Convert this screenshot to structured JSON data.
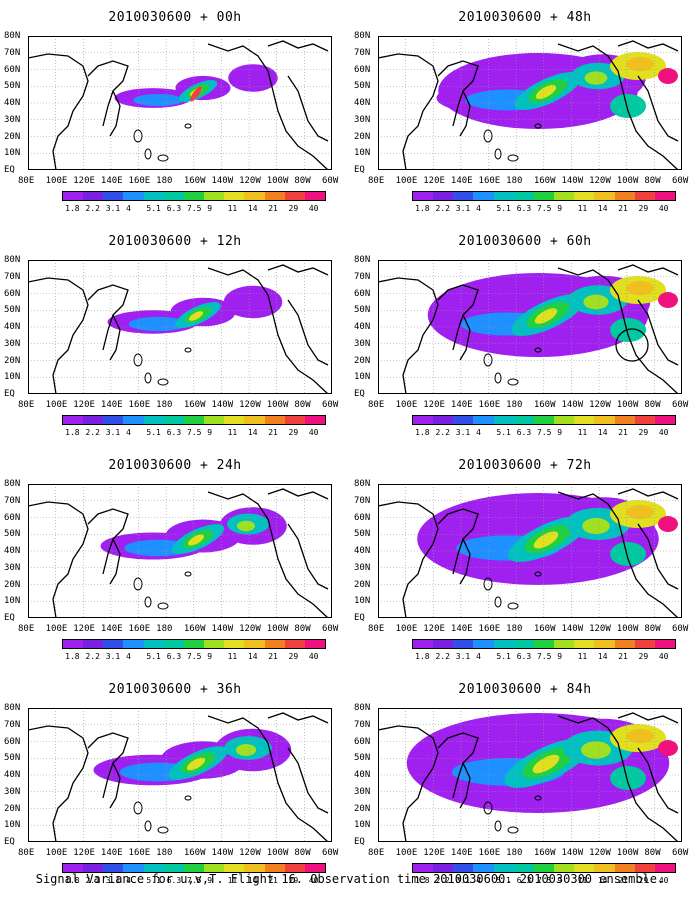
{
  "colorbar": {
    "labels": [
      "1.8",
      "2.2",
      "3.1",
      "4",
      "5.1",
      "6.3",
      "7.5",
      "9",
      "11",
      "14",
      "21",
      "29",
      "40"
    ],
    "colors": [
      "#a020f0",
      "#7a20e0",
      "#3050e8",
      "#1e90ff",
      "#00c0c0",
      "#00c8a0",
      "#20d040",
      "#a0e020",
      "#e0e020",
      "#f0c020",
      "#f08020",
      "#f04040",
      "#f01080"
    ]
  },
  "map_axes": {
    "lat_labels": [
      "80N",
      "70N",
      "60N",
      "50N",
      "40N",
      "30N",
      "20N",
      "10N",
      "EQ"
    ],
    "lon_labels": [
      "80E",
      "100E",
      "120E",
      "140E",
      "160E",
      "180",
      "160W",
      "140W",
      "120W",
      "100W",
      "80W",
      "60W"
    ]
  },
  "panels": [
    {
      "title": "2010030600 + 00h",
      "level": 1,
      "ring": false
    },
    {
      "title": "2010030600 + 48h",
      "level": 5,
      "ring": false
    },
    {
      "title": "2010030600 + 12h",
      "level": 2,
      "ring": false
    },
    {
      "title": "2010030600 + 60h",
      "level": 6,
      "ring": true
    },
    {
      "title": "2010030600 + 24h",
      "level": 3,
      "ring": false
    },
    {
      "title": "2010030600 + 72h",
      "level": 7,
      "ring": false
    },
    {
      "title": "2010030600 + 36h",
      "level": 4,
      "ring": false
    },
    {
      "title": "2010030600 + 84h",
      "level": 8,
      "ring": false
    }
  ],
  "footer": "Signal Variance for u,v,T. Flight 16. Observation time 2010030600. 2010030300 ensemble."
}
